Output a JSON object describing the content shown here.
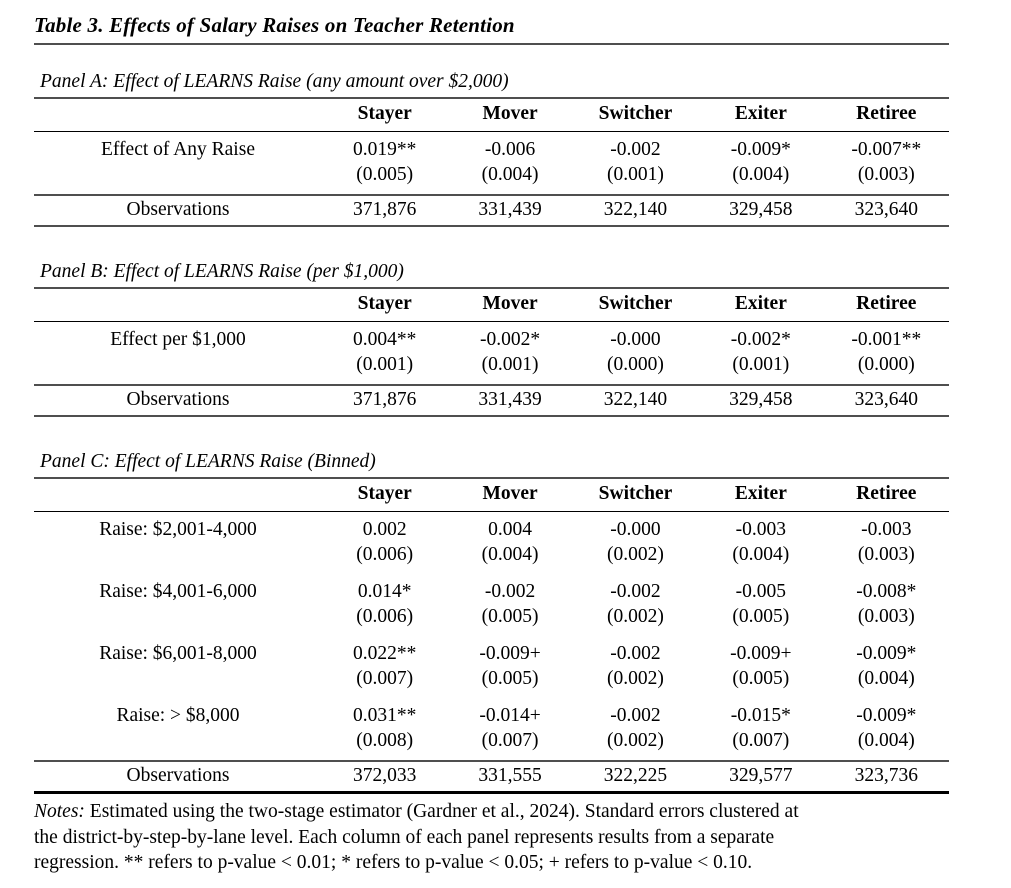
{
  "page": {
    "title": "Table 3. Effects of Salary Raises on Teacher Retention"
  },
  "columns": [
    "Stayer",
    "Mover",
    "Switcher",
    "Exiter",
    "Retiree"
  ],
  "panels": [
    {
      "label": "Panel A: Effect of LEARNS Raise (any amount over $2,000)",
      "rows": [
        {
          "type": "est",
          "label": "Effect of Any Raise",
          "values": [
            "0.019**",
            "-0.006",
            "-0.002",
            "-0.009*",
            "-0.007**"
          ]
        },
        {
          "type": "se",
          "label": "",
          "values": [
            "(0.005)",
            "(0.004)",
            "(0.001)",
            "(0.004)",
            "(0.003)"
          ]
        }
      ],
      "observations": {
        "label": "Observations",
        "values": [
          "371,876",
          "331,439",
          "322,140",
          "329,458",
          "323,640"
        ]
      }
    },
    {
      "label": "Panel B: Effect of LEARNS Raise (per $1,000)",
      "rows": [
        {
          "type": "est",
          "label": "Effect per $1,000",
          "values": [
            "0.004**",
            "-0.002*",
            "-0.000",
            "-0.002*",
            "-0.001**"
          ]
        },
        {
          "type": "se",
          "label": "",
          "values": [
            "(0.001)",
            "(0.001)",
            "(0.000)",
            "(0.001)",
            "(0.000)"
          ]
        }
      ],
      "observations": {
        "label": "Observations",
        "values": [
          "371,876",
          "331,439",
          "322,140",
          "329,458",
          "323,640"
        ]
      }
    },
    {
      "label": "Panel C: Effect of LEARNS Raise (Binned)",
      "rows": [
        {
          "type": "est",
          "label": "Raise: $2,001-4,000",
          "values": [
            "0.002",
            "0.004",
            "-0.000",
            "-0.003",
            "-0.003"
          ]
        },
        {
          "type": "se",
          "label": "",
          "values": [
            "(0.006)",
            "(0.004)",
            "(0.002)",
            "(0.004)",
            "(0.003)"
          ]
        },
        {
          "type": "est",
          "label": "Raise: $4,001-6,000",
          "values": [
            "0.014*",
            "-0.002",
            "-0.002",
            "-0.005",
            "-0.008*"
          ]
        },
        {
          "type": "se",
          "label": "",
          "values": [
            "(0.006)",
            "(0.005)",
            "(0.002)",
            "(0.005)",
            "(0.003)"
          ]
        },
        {
          "type": "est",
          "label": "Raise: $6,001-8,000",
          "values": [
            "0.022**",
            "-0.009+",
            "-0.002",
            "-0.009+",
            "-0.009*"
          ]
        },
        {
          "type": "se",
          "label": "",
          "values": [
            "(0.007)",
            "(0.005)",
            "(0.002)",
            "(0.005)",
            "(0.004)"
          ]
        },
        {
          "type": "est",
          "label": "Raise: > $8,000",
          "values": [
            "0.031**",
            "-0.014+",
            "-0.002",
            "-0.015*",
            "-0.009*"
          ]
        },
        {
          "type": "se",
          "label": "",
          "values": [
            "(0.008)",
            "(0.007)",
            "(0.002)",
            "(0.007)",
            "(0.004)"
          ]
        }
      ],
      "observations": {
        "label": "Observations",
        "values": [
          "372,033",
          "331,555",
          "322,225",
          "329,577",
          "323,736"
        ]
      }
    }
  ],
  "notes": {
    "label": "Notes:",
    "lines": [
      "Estimated using the two-stage estimator (Gardner et al., 2024). Standard errors clustered at",
      "the district-by-step-by-lane level. Each column of each panel represents results from a separate",
      "regression. ** refers to p-value < 0.01; * refers to p-value < 0.05; + refers to p-value < 0.10."
    ]
  },
  "colors": {
    "text": "#000000",
    "rule_gray": "#4f4f4f",
    "rule_black": "#000000",
    "background": "#ffffff"
  }
}
